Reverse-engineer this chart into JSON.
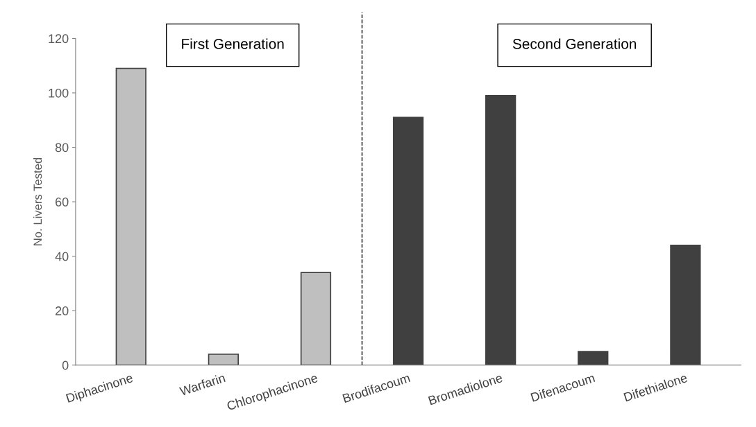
{
  "chart_data": {
    "type": "bar",
    "ylabel": "No. Livers Tested",
    "categories": [
      "Diphacinone",
      "Warfarin",
      "Chlorophacinone",
      "Brodifacoum",
      "Bromadiolone",
      "Difenacoum",
      "Difethialone"
    ],
    "values": [
      109,
      4,
      34,
      91,
      99,
      5,
      44
    ],
    "colors": [
      "#bfbfbf",
      "#bfbfbf",
      "#bfbfbf",
      "#404040",
      "#404040",
      "#404040",
      "#404040"
    ],
    "ylim": [
      0,
      120
    ],
    "yticks": [
      0,
      20,
      40,
      60,
      80,
      100,
      120
    ],
    "annotations": [
      "First Generation",
      "Second Generation"
    ],
    "grid": false,
    "legend": false
  }
}
